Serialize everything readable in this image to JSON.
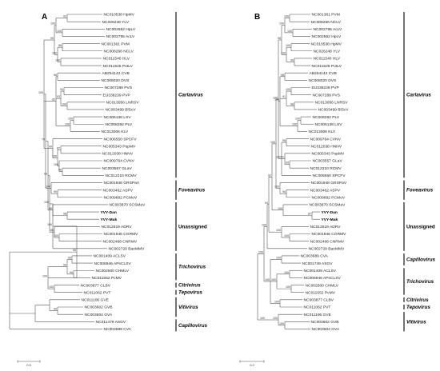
{
  "figure": {
    "panels": [
      {
        "id": "A",
        "scale_label": "0.5",
        "leaves": [
          {
            "label": "NC010538 HpMV"
          },
          {
            "label": "NC026248 YLV"
          },
          {
            "label": "NC002552 HpLV"
          },
          {
            "label": "NC002795 AcLV"
          },
          {
            "label": "NC001361 PVM"
          },
          {
            "label": "NC008266 NCLV"
          },
          {
            "label": "NC011540 HLV"
          },
          {
            "label": "NC011525 PotLV"
          },
          {
            "label": "AB254142 CVB"
          },
          {
            "label": "NC008020 DVS"
          },
          {
            "label": "NC007289 PVS"
          },
          {
            "label": "EU338239 PVP"
          },
          {
            "label": "NC013056 LNRSV"
          },
          {
            "label": "NC003499 BlScV"
          },
          {
            "label": "NC005138 LSV"
          },
          {
            "label": "NC008292 PLV"
          },
          {
            "label": "NC013006 KLV"
          },
          {
            "label": "NC006550 SPCFV"
          },
          {
            "label": "NC005343 PopMV"
          },
          {
            "label": "NC012038 HNNV"
          },
          {
            "label": "NC009764 CVNV"
          },
          {
            "label": "NC003557 GLaV"
          },
          {
            "label": "NC012210 RCMV"
          },
          {
            "label": "NC001948 GRSPaV"
          },
          {
            "label": "NC003462 ASPV"
          },
          {
            "label": "NC009892 PCMoV"
          },
          {
            "label": "NC003870 SCSMaV"
          },
          {
            "label": "YVY-Dan",
            "bold": true
          },
          {
            "label": "YVY-Mak",
            "bold": true
          },
          {
            "label": "NC012519 ADRV"
          },
          {
            "label": "NC001946 CGRMV"
          },
          {
            "label": "NC002468 CNRMV"
          },
          {
            "label": "NC002729 BanMMV"
          },
          {
            "label": "NC001409 ACLSV"
          },
          {
            "label": "NC006946 APsCLSV"
          },
          {
            "label": "NC002500 CHMLV"
          },
          {
            "label": "NC011552 PcMV"
          },
          {
            "label": "NC003877 CLBV"
          },
          {
            "label": "NC011062 PVT"
          },
          {
            "label": "NC011106 GVE"
          },
          {
            "label": "NC003602 GVB"
          },
          {
            "label": "NC003604 GVA"
          },
          {
            "label": "NC011479 ASGV"
          },
          {
            "label": "NC003689 CVA"
          }
        ],
        "bootstrap": [
          "92",
          "100",
          "100",
          "86",
          "100",
          "100",
          "99",
          "98",
          "94",
          "100",
          "93",
          "100",
          "100",
          "82",
          "87",
          "96",
          "100",
          "100",
          "99",
          "100",
          "99",
          "100",
          "79",
          "98",
          "98",
          "93",
          "100",
          "86",
          "100",
          "100",
          "99",
          "99",
          "99",
          "100",
          "100",
          "98",
          "99"
        ],
        "groups": [
          {
            "name": "Carlavirus",
            "italic": true
          },
          {
            "name": "Foveavirus",
            "italic": true
          },
          {
            "name": "Unassigned",
            "italic": false
          },
          {
            "name": "Trichovirus",
            "italic": true
          },
          {
            "name": "Citrivirus",
            "italic": true
          },
          {
            "name": "Tepovirus",
            "italic": true
          },
          {
            "name": "Vitivirus",
            "italic": true
          },
          {
            "name": "Capillovirus",
            "italic": true
          }
        ]
      },
      {
        "id": "B",
        "scale_label": "0.2",
        "leaves": [
          {
            "label": "NC001361 PVM"
          },
          {
            "label": "NC008266 NCLV"
          },
          {
            "label": "NC002795 AcLV"
          },
          {
            "label": "NC002552 HpLV"
          },
          {
            "label": "NC010538 HpMV"
          },
          {
            "label": "NC026248 YLV"
          },
          {
            "label": "NC011540 HLV"
          },
          {
            "label": "NC011525 PotLV"
          },
          {
            "label": "AB254142 CVB"
          },
          {
            "label": "NC008020 DVS"
          },
          {
            "label": "EU338239 PVP"
          },
          {
            "label": "NC007289 PVS"
          },
          {
            "label": "NC013056 LNRSV"
          },
          {
            "label": "NC003499 BlScV"
          },
          {
            "label": "NC008292 PLV"
          },
          {
            "label": "NC005138 LSV"
          },
          {
            "label": "NC013006 KLV"
          },
          {
            "label": "NC009764 CVNV"
          },
          {
            "label": "NC012038 HNNV"
          },
          {
            "label": "NC005343 PopMV"
          },
          {
            "label": "NC003557 GLaV"
          },
          {
            "label": "NC012210 RCMV"
          },
          {
            "label": "NC006550 SPCFV"
          },
          {
            "label": "NC001948 GRSPaV"
          },
          {
            "label": "NC003462 ASPV"
          },
          {
            "label": "NC009892 PCMoV"
          },
          {
            "label": "NC003870 SCSMaV"
          },
          {
            "label": "YVY-Dan",
            "bold": true
          },
          {
            "label": "YVY-Mak",
            "bold": true
          },
          {
            "label": "NC012519 ADRV"
          },
          {
            "label": "NC001946 CGRMV"
          },
          {
            "label": "NC002468 CNRMV"
          },
          {
            "label": "NC002729 BanMMV"
          },
          {
            "label": "NC003689 CVA"
          },
          {
            "label": "NC001749 ASGV"
          },
          {
            "label": "NC001409 ACLSV"
          },
          {
            "label": "NC006946 APsCLSV"
          },
          {
            "label": "NC002500 CHMLV"
          },
          {
            "label": "NC011552 PcMV"
          },
          {
            "label": "NC003877 CLBV"
          },
          {
            "label": "NC011062 PVT"
          },
          {
            "label": "NC011106 GVE"
          },
          {
            "label": "NC003602 GVB"
          },
          {
            "label": "NC003604 GVA"
          }
        ],
        "bootstrap": [
          "100",
          "100",
          "100",
          "100",
          "99",
          "100",
          "98",
          "98",
          "100",
          "98",
          "91",
          "100",
          "100",
          "100",
          "96",
          "99",
          "91",
          "100",
          "100",
          "94",
          "100",
          "100",
          "87",
          "100",
          "92",
          "100",
          "100",
          "93",
          "100",
          "100",
          "100",
          "100",
          "100",
          "100",
          "100",
          "100",
          "100",
          "100",
          "100"
        ],
        "groups": [
          {
            "name": "Carlavirus",
            "italic": true
          },
          {
            "name": "Foveavirus",
            "italic": true
          },
          {
            "name": "Unassigned",
            "italic": false
          },
          {
            "name": "Capillovirus",
            "italic": true
          },
          {
            "name": "Trichovirus",
            "italic": true
          },
          {
            "name": "Citrivirus",
            "italic": true
          },
          {
            "name": "Tepovirus",
            "italic": true
          },
          {
            "name": "Vitivirus",
            "italic": true
          }
        ]
      }
    ]
  }
}
